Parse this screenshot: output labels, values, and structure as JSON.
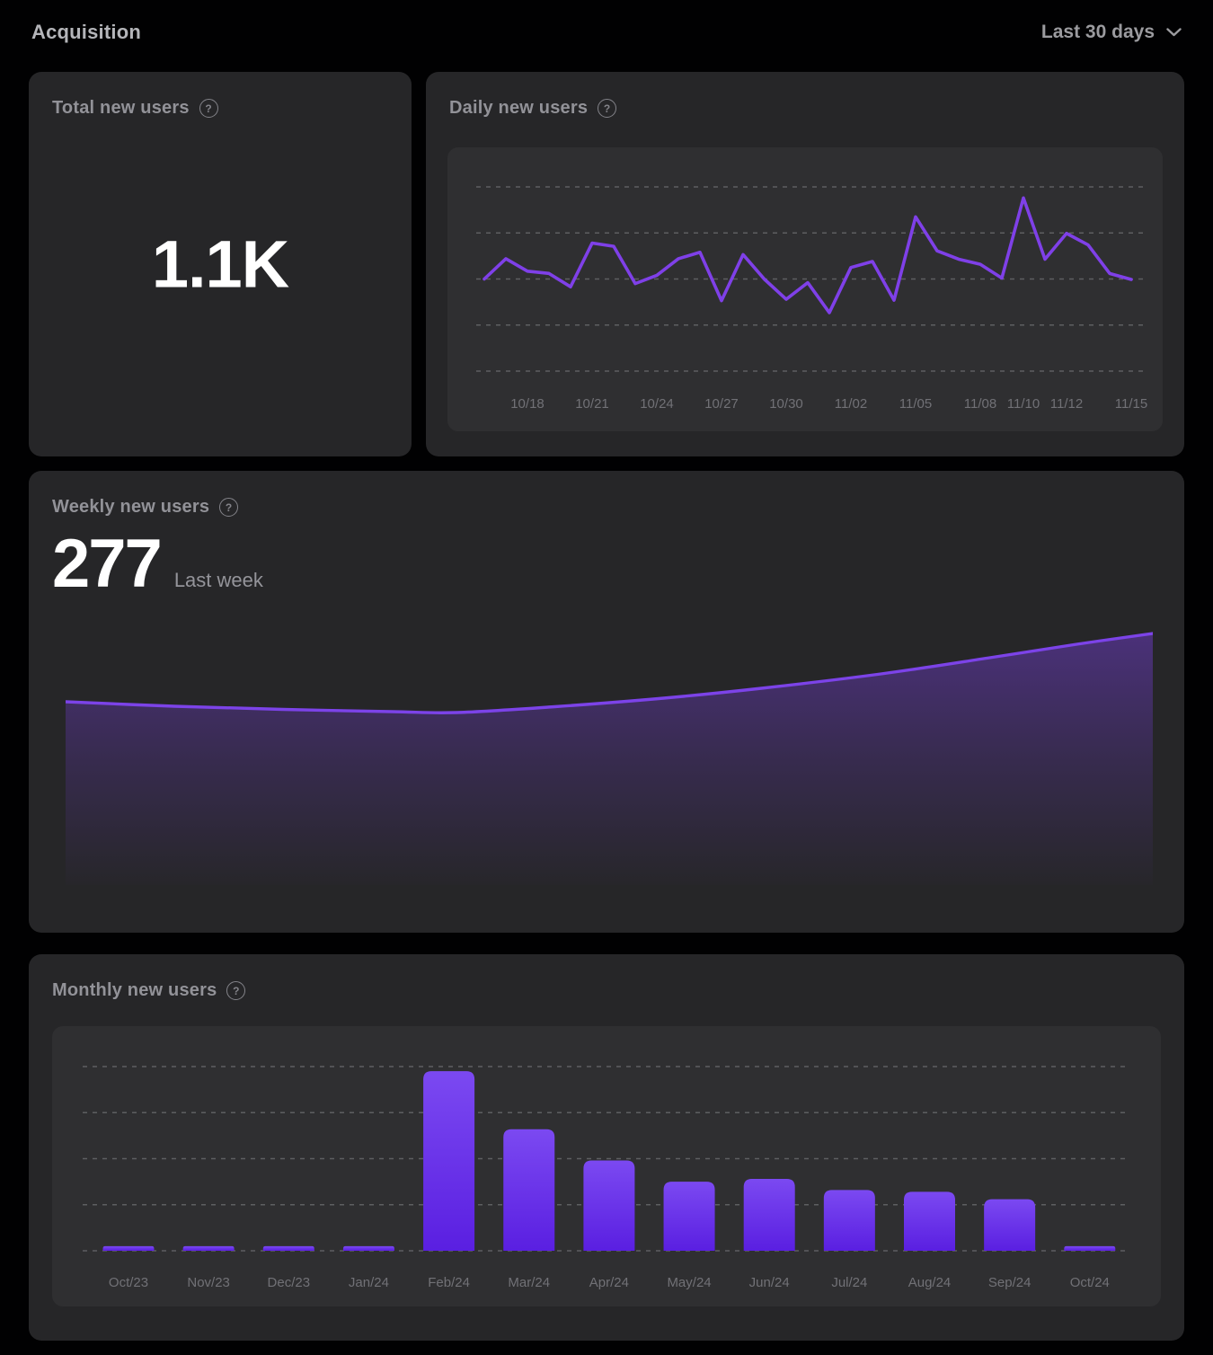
{
  "page": {
    "title": "Acquisition"
  },
  "period_selector": {
    "label": "Last 30 days"
  },
  "icons": {
    "help": "?"
  },
  "colors": {
    "background": "#010102",
    "card": "#262628",
    "panel": "#2f2f31",
    "accent_purple": "#7f40e8",
    "bar_gradient_top": "#7b49f1",
    "bar_gradient_bottom": "#5a1fe1",
    "gridline": "#6e6f72",
    "axis_label": "#717176"
  },
  "cards": {
    "total": {
      "title": "Total new users",
      "value": "1.1K"
    },
    "daily": {
      "title": "Daily new users"
    },
    "weekly": {
      "title": "Weekly new users",
      "value": "277",
      "value_caption": "Last week"
    },
    "monthly": {
      "title": "Monthly new users"
    }
  },
  "chart_data": [
    {
      "id": "daily",
      "type": "line",
      "title": "Daily new users",
      "color": "#7f40e8",
      "grid": true,
      "ylim": [
        0,
        40
      ],
      "gridline_values": [
        0,
        10,
        20,
        30,
        40
      ],
      "x": [
        "10/16",
        "10/17",
        "10/18",
        "10/19",
        "10/20",
        "10/21",
        "10/22",
        "10/23",
        "10/24",
        "10/25",
        "10/26",
        "10/27",
        "10/28",
        "10/29",
        "10/30",
        "10/31",
        "11/01",
        "11/02",
        "11/03",
        "11/04",
        "11/05",
        "11/06",
        "11/07",
        "11/08",
        "11/09",
        "11/10",
        "11/11",
        "11/12",
        "11/13",
        "11/14",
        "11/15"
      ],
      "values": [
        20,
        24.4,
        21.7,
        21.2,
        18.3,
        27.8,
        27.1,
        19,
        20.8,
        24.4,
        25.8,
        15.3,
        25.3,
        19.9,
        15.6,
        19.2,
        12.7,
        22.5,
        23.8,
        15.4,
        33.5,
        26.1,
        24.3,
        23.2,
        20.2,
        37.6,
        24.3,
        29.9,
        27.4,
        21.2,
        19.9
      ],
      "tick_labels": [
        {
          "label": "10/18",
          "index": 2
        },
        {
          "label": "10/21",
          "index": 5
        },
        {
          "label": "10/24",
          "index": 8
        },
        {
          "label": "10/27",
          "index": 11
        },
        {
          "label": "10/30",
          "index": 14
        },
        {
          "label": "11/02",
          "index": 17
        },
        {
          "label": "11/05",
          "index": 20
        },
        {
          "label": "11/08",
          "index": 23
        },
        {
          "label": "11/10",
          "index": 25
        },
        {
          "label": "11/12",
          "index": 27
        },
        {
          "label": "11/15",
          "index": 30
        }
      ]
    },
    {
      "id": "weekly",
      "type": "area",
      "title": "Weekly new users",
      "color": "#7c43e8",
      "fill_rgb": "125,64,234",
      "grid": false,
      "last_value": 277,
      "points": [
        {
          "x": 0.0,
          "v": 201
        },
        {
          "x": 0.1,
          "v": 196
        },
        {
          "x": 0.2,
          "v": 192.5
        },
        {
          "x": 0.3,
          "v": 190
        },
        {
          "x": 0.36,
          "v": 189
        },
        {
          "x": 0.45,
          "v": 195.5
        },
        {
          "x": 0.55,
          "v": 205
        },
        {
          "x": 0.64,
          "v": 216
        },
        {
          "x": 0.75,
          "v": 232
        },
        {
          "x": 0.85,
          "v": 250
        },
        {
          "x": 0.93,
          "v": 265
        },
        {
          "x": 1.0,
          "v": 277
        }
      ]
    },
    {
      "id": "monthly",
      "type": "bar",
      "title": "Monthly new users",
      "bar_top": "#7b49f1",
      "bar_bottom": "#5a1fe1",
      "grid": true,
      "ylim": [
        0,
        200
      ],
      "gridline_values": [
        0,
        50,
        100,
        150,
        200
      ],
      "categories": [
        "Oct/23",
        "Nov/23",
        "Dec/23",
        "Jan/24",
        "Feb/24",
        "Mar/24",
        "Apr/24",
        "May/24",
        "Jun/24",
        "Jul/24",
        "Aug/24",
        "Sep/24",
        "Oct/24"
      ],
      "values": [
        5,
        5,
        5,
        5,
        195,
        132,
        98,
        75,
        78,
        66,
        64,
        56,
        5
      ]
    }
  ]
}
